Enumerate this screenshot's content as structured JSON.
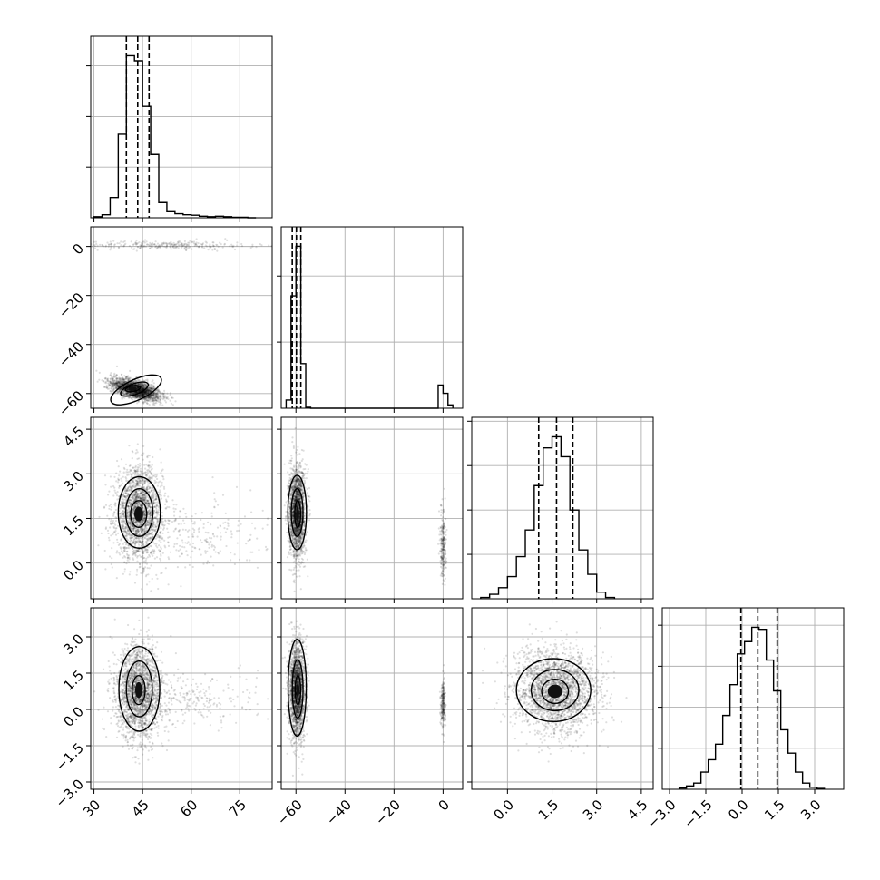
{
  "chart_data": {
    "type": "corner",
    "parameters": [
      {
        "range": [
          29,
          85
        ],
        "ticks": [
          "30",
          "45",
          "60",
          "75"
        ],
        "show_xlabels": true,
        "show_ylabels": false
      },
      {
        "range": [
          -66,
          8
        ],
        "ticks": [
          "−60",
          "−40",
          "−20",
          "0"
        ],
        "show_xlabels": true,
        "show_ylabels": true
      },
      {
        "range": [
          -1.2,
          4.9
        ],
        "ticks": [
          "0.0",
          "1.5",
          "3.0",
          "4.5"
        ],
        "show_xlabels": true,
        "show_ylabels": true
      },
      {
        "range": [
          -3.3,
          4.2
        ],
        "ticks": [
          "−3.0",
          "−1.5",
          "0.0",
          "1.5",
          "3.0"
        ],
        "show_xlabels": true,
        "show_ylabels": true
      }
    ],
    "grid": true,
    "diagonal_histograms": [
      {
        "param": 0,
        "bin_edges": [
          30,
          32.5,
          35,
          37.5,
          40,
          42.5,
          45,
          47.5,
          50,
          52.5,
          55,
          57.5,
          60,
          62.5,
          65,
          67.5,
          70,
          72.5,
          75,
          77.5,
          80
        ],
        "counts": [
          2,
          6,
          40,
          165,
          320,
          310,
          220,
          125,
          30,
          12,
          8,
          6,
          5,
          3,
          2,
          3,
          2,
          1,
          1,
          0
        ],
        "quantiles": [
          40.0,
          43.5,
          47.0
        ]
      },
      {
        "param": 1,
        "bin_edges": [
          -64,
          -62,
          -60,
          -58,
          -56,
          -54,
          -52,
          -50,
          -48,
          -46,
          -44,
          -42,
          -40,
          -38,
          -36,
          -34,
          -32,
          -30,
          -28,
          -26,
          -24,
          -22,
          -20,
          -18,
          -16,
          -14,
          -12,
          -10,
          -8,
          -6,
          -4,
          -2,
          0,
          2,
          4
        ],
        "counts": [
          25,
          340,
          490,
          135,
          3,
          0,
          0,
          0,
          0,
          0,
          0,
          0,
          0,
          0,
          0,
          0,
          0,
          0,
          0,
          0,
          0,
          0,
          0,
          0,
          0,
          0,
          0,
          0,
          0,
          0,
          0,
          70,
          45,
          10
        ],
        "quantiles": [
          -61.5,
          -59.8,
          -58.0
        ]
      },
      {
        "param": 2,
        "bin_edges": [
          -0.9,
          -0.6,
          -0.3,
          0.0,
          0.3,
          0.6,
          0.9,
          1.2,
          1.5,
          1.8,
          2.1,
          2.4,
          2.7,
          3.0,
          3.3,
          3.6
        ],
        "counts": [
          3,
          10,
          25,
          50,
          95,
          155,
          255,
          340,
          365,
          320,
          200,
          110,
          55,
          15,
          3
        ],
        "quantiles": [
          1.05,
          1.65,
          2.2
        ]
      },
      {
        "param": 3,
        "bin_edges": [
          -2.6,
          -2.3,
          -2.0,
          -1.7,
          -1.4,
          -1.1,
          -0.8,
          -0.5,
          -0.2,
          0.1,
          0.4,
          0.7,
          1.0,
          1.3,
          1.6,
          1.9,
          2.2,
          2.5,
          2.8,
          3.1,
          3.4
        ],
        "counts": [
          3,
          8,
          15,
          42,
          72,
          110,
          180,
          255,
          330,
          360,
          395,
          390,
          315,
          240,
          145,
          88,
          42,
          15,
          5,
          2
        ],
        "quantiles": [
          -0.05,
          0.65,
          1.45
        ]
      }
    ],
    "pair_panels": [
      {
        "x_param": 0,
        "y_param": 1,
        "clusters": [
          {
            "x": 43,
            "y": -58.5,
            "sx": 3.8,
            "sy": 2.2,
            "weight": 0.88,
            "corr": 0.55,
            "slope": -0.35
          },
          {
            "x": 52,
            "y": 0.5,
            "sx": 14,
            "sy": 0.9,
            "weight": 0.12,
            "corr": 0
          }
        ],
        "contours": [
          {
            "x": 43,
            "y": -58.5,
            "rx": 8.5,
            "ry": 4.2,
            "rot": -25
          },
          {
            "x": 42.5,
            "y": -58.2,
            "rx": 4.5,
            "ry": 2.2,
            "rot": -20
          },
          {
            "x": 42,
            "y": -58,
            "rx": 2.3,
            "ry": 1.2,
            "rot": -10
          }
        ]
      },
      {
        "x_param": 0,
        "y_param": 2,
        "clusters": [
          {
            "x": 44,
            "y": 1.7,
            "sx": 3.5,
            "sy": 0.75,
            "weight": 0.88,
            "corr": 0
          },
          {
            "x": 58,
            "y": 0.9,
            "sx": 12,
            "sy": 0.6,
            "weight": 0.12,
            "corr": 0
          }
        ],
        "contours": [
          {
            "x": 44,
            "y": 1.7,
            "rx": 6.5,
            "ry": 1.2,
            "rot": 0
          },
          {
            "x": 44,
            "y": 1.7,
            "rx": 4.2,
            "ry": 0.8,
            "rot": 0
          },
          {
            "x": 43.8,
            "y": 1.65,
            "rx": 2.5,
            "ry": 0.45,
            "rot": 0
          }
        ]
      },
      {
        "x_param": 1,
        "y_param": 2,
        "clusters": [
          {
            "x": -59.5,
            "y": 1.7,
            "sx": 1.6,
            "sy": 0.75,
            "weight": 0.9,
            "corr": 0
          },
          {
            "x": 0,
            "y": 0.6,
            "sx": 0.6,
            "sy": 0.6,
            "weight": 0.1,
            "corr": 0
          }
        ],
        "contours": [
          {
            "x": -59.5,
            "y": 1.7,
            "rx": 3.8,
            "ry": 1.25,
            "rot": 0
          },
          {
            "x": -59.5,
            "y": 1.7,
            "rx": 2.4,
            "ry": 0.8,
            "rot": 0
          },
          {
            "x": -59.3,
            "y": 1.65,
            "rx": 1.2,
            "ry": 0.45,
            "rot": 0
          }
        ]
      },
      {
        "x_param": 0,
        "y_param": 3,
        "clusters": [
          {
            "x": 44,
            "y": 0.7,
            "sx": 3.5,
            "sy": 0.95,
            "weight": 0.88,
            "corr": 0
          },
          {
            "x": 58,
            "y": 0.4,
            "sx": 12,
            "sy": 0.55,
            "weight": 0.12,
            "corr": 0
          }
        ],
        "contours": [
          {
            "x": 44,
            "y": 0.85,
            "rx": 6.3,
            "ry": 1.75,
            "rot": 0
          },
          {
            "x": 44,
            "y": 0.85,
            "rx": 4.0,
            "ry": 1.15,
            "rot": 0
          },
          {
            "x": 43.8,
            "y": 0.8,
            "rx": 2.0,
            "ry": 0.6,
            "rot": 0
          }
        ]
      },
      {
        "x_param": 1,
        "y_param": 3,
        "clusters": [
          {
            "x": -59.5,
            "y": 0.8,
            "sx": 1.6,
            "sy": 0.95,
            "weight": 0.9,
            "corr": 0
          },
          {
            "x": 0,
            "y": 0.2,
            "sx": 0.5,
            "sy": 0.5,
            "weight": 0.1,
            "corr": 0
          }
        ],
        "contours": [
          {
            "x": -59.5,
            "y": 0.9,
            "rx": 3.7,
            "ry": 2.0,
            "rot": 0
          },
          {
            "x": -59.3,
            "y": 0.85,
            "rx": 2.2,
            "ry": 1.2,
            "rot": 0
          },
          {
            "x": -59.2,
            "y": 0.8,
            "rx": 1.1,
            "ry": 0.6,
            "rot": 0
          }
        ]
      },
      {
        "x_param": 2,
        "y_param": 3,
        "clusters": [
          {
            "x": 1.65,
            "y": 0.75,
            "sx": 0.7,
            "sy": 0.85,
            "weight": 1.0,
            "corr": 0
          }
        ],
        "contours": [
          {
            "x": 1.55,
            "y": 0.8,
            "rx": 1.25,
            "ry": 1.3,
            "rot": 0
          },
          {
            "x": 1.6,
            "y": 0.8,
            "rx": 0.8,
            "ry": 0.85,
            "rot": 0
          },
          {
            "x": 1.6,
            "y": 0.75,
            "rx": 0.45,
            "ry": 0.5,
            "rot": 0
          }
        ]
      }
    ]
  }
}
